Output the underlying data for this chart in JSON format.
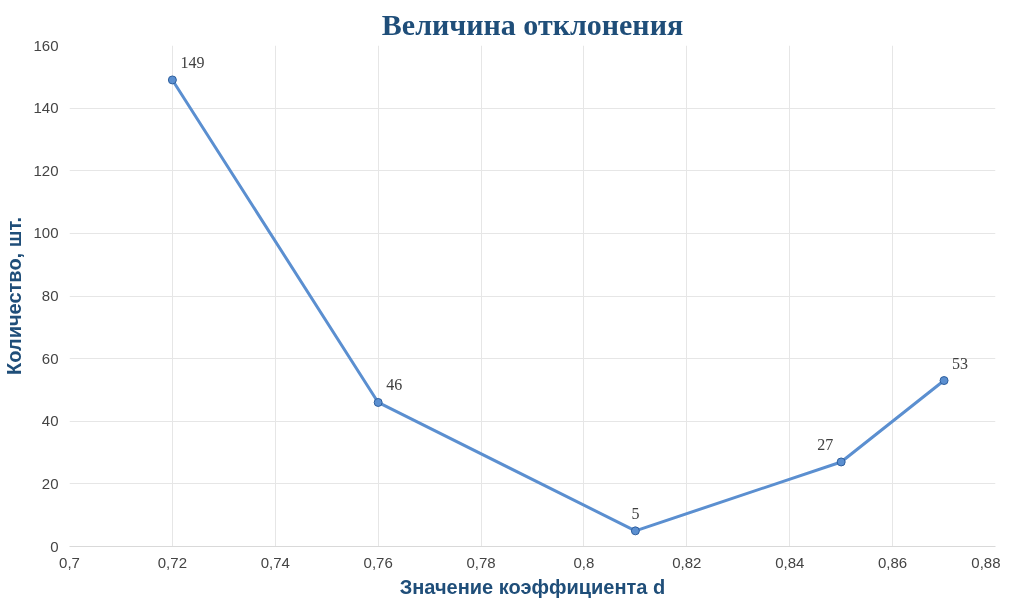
{
  "chart_data": {
    "type": "line",
    "title": "Величина отклонения",
    "xlabel": "Значение коэффициента d",
    "ylabel": "Количество, шт.",
    "x": [
      0.72,
      0.76,
      0.81,
      0.85,
      0.87
    ],
    "series": [
      {
        "color": "#5b8fd0",
        "values": [
          149,
          46,
          5,
          27,
          53
        ]
      }
    ],
    "xlim": [
      0.7,
      0.88
    ],
    "xticks": [
      {
        "value": 0.7,
        "label": "0,7"
      },
      {
        "value": 0.72,
        "label": "0,72"
      },
      {
        "value": 0.74,
        "label": "0,74"
      },
      {
        "value": 0.76,
        "label": "0,76"
      },
      {
        "value": 0.78,
        "label": "0,78"
      },
      {
        "value": 0.8,
        "label": "0,8"
      },
      {
        "value": 0.82,
        "label": "0,82"
      },
      {
        "value": 0.84,
        "label": "0,84"
      },
      {
        "value": 0.86,
        "label": "0,86"
      },
      {
        "value": 0.88,
        "label": "0,88"
      }
    ],
    "ylim": [
      0,
      160
    ],
    "yticks": [
      0,
      20,
      40,
      60,
      80,
      100,
      120,
      140,
      160
    ],
    "grid": true,
    "marker": "circle",
    "line_style": "solid",
    "data_labels": true
  }
}
